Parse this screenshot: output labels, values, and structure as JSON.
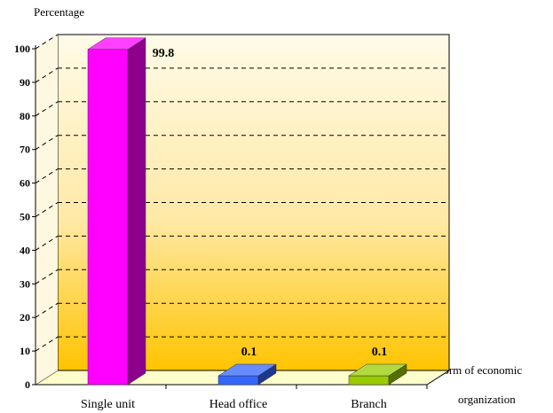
{
  "chart_data": {
    "type": "bar",
    "title": "",
    "ylabel": "Percentage",
    "xlabel_lines": [
      "form of economic",
      "organization"
    ],
    "categories": [
      "Single unit",
      "Head office",
      "Branch"
    ],
    "values": [
      99.8,
      0.1,
      0.1
    ],
    "data_labels": [
      "99.8",
      "0.1",
      "0.1"
    ],
    "ylim": [
      0,
      100
    ],
    "yticks": [
      0,
      10,
      20,
      30,
      40,
      50,
      60,
      70,
      80,
      90,
      100
    ],
    "grid": true,
    "style": "3d",
    "colors": [
      "#ff00ff",
      "#3366ff",
      "#99cc00"
    ],
    "background_gradient": [
      "#fffbe8",
      "#ffc400"
    ]
  }
}
